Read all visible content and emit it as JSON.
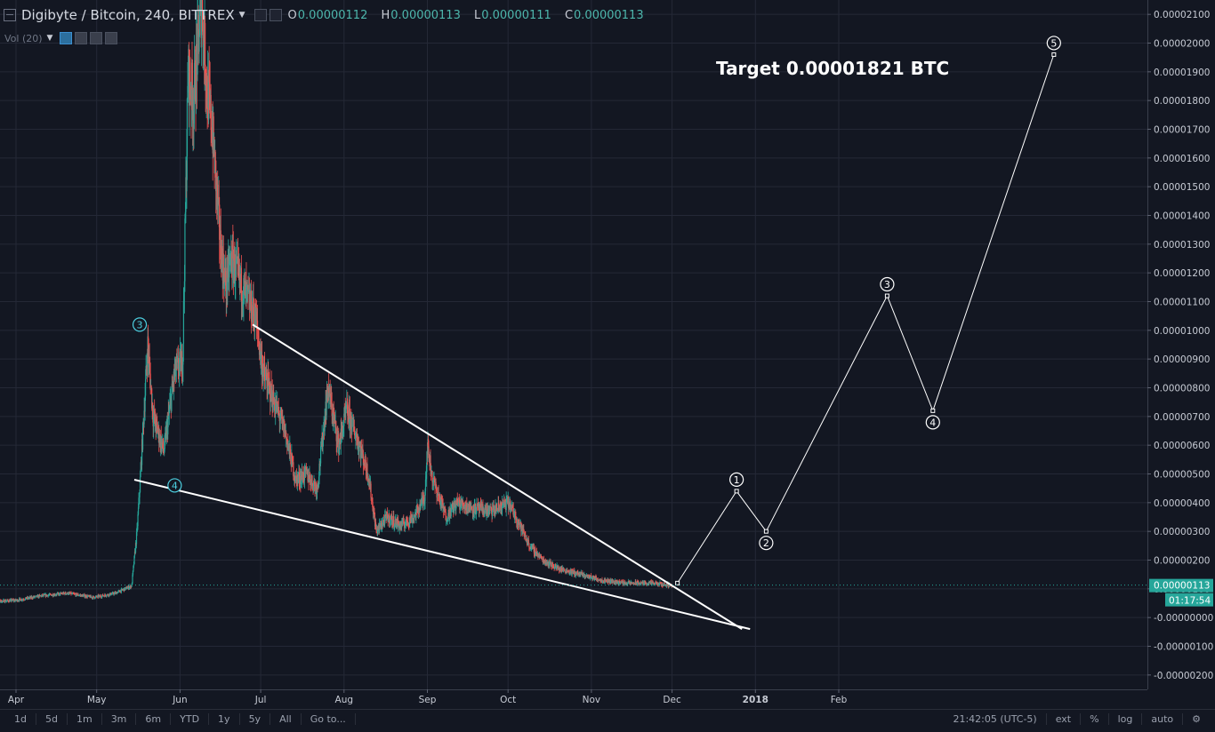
{
  "header": {
    "title": "Digibyte / Bitcoin, 240, BITTREX",
    "ohlc": [
      {
        "key": "O",
        "value": "0.00000112"
      },
      {
        "key": "H",
        "value": "0.00000113"
      },
      {
        "key": "L",
        "value": "0.00000111"
      },
      {
        "key": "C",
        "value": "0.00000113"
      }
    ],
    "volume_label": "Vol (20)"
  },
  "colors": {
    "background": "#131722",
    "grid": "#242836",
    "up": "#26a69a",
    "down": "#ef5350",
    "price_tag": "#26a69a",
    "drawing": "#ffffff",
    "wave_marker_early": "#4dd0e1"
  },
  "chart_data": {
    "type": "candlestick",
    "annotation": "Target 0.00001821 BTC",
    "x_tick_labels": [
      "Apr",
      "May",
      "Jun",
      "Jul",
      "Aug",
      "Sep",
      "Oct",
      "Nov",
      "Dec",
      "2018",
      "Feb"
    ],
    "x_tick_dates": [
      "2017-04-01",
      "2017-05-01",
      "2017-06-01",
      "2017-07-01",
      "2017-08-01",
      "2017-09-01",
      "2017-10-01",
      "2017-11-01",
      "2017-12-01",
      "2018-01-01",
      "2018-02-01"
    ],
    "y_range": [
      -2.5e-06,
      2.15e-05
    ],
    "y_tick_labels": [
      "0.00002100",
      "0.00002000",
      "0.00001900",
      "0.00001800",
      "0.00001700",
      "0.00001600",
      "0.00001500",
      "0.00001400",
      "0.00001300",
      "0.00001200",
      "0.00001100",
      "0.00001000",
      "0.00000900",
      "0.00000800",
      "0.00000700",
      "0.00000600",
      "0.00000500",
      "0.00000400",
      "0.00000300",
      "0.00000200",
      "0.00000100",
      "-0.00000000",
      "-0.00000100",
      "-0.00000200"
    ],
    "y_tick_values": [
      2.1e-05,
      2e-05,
      1.9e-05,
      1.8e-05,
      1.7e-05,
      1.6e-05,
      1.5e-05,
      1.4e-05,
      1.3e-05,
      1.2e-05,
      1.1e-05,
      1e-05,
      9e-06,
      8e-06,
      7e-06,
      6e-06,
      5e-06,
      4e-06,
      3e-06,
      2e-06,
      1e-06,
      0,
      -1e-06,
      -2e-06
    ],
    "price_path": [
      [
        "2017-03-22",
        5.5e-07
      ],
      [
        "2017-04-01",
        6e-07
      ],
      [
        "2017-04-10",
        7.5e-07
      ],
      [
        "2017-04-20",
        8.5e-07
      ],
      [
        "2017-04-30",
        7e-07
      ],
      [
        "2017-05-08",
        8.5e-07
      ],
      [
        "2017-05-14",
        1.1e-06
      ],
      [
        "2017-05-16",
        3e-06
      ],
      [
        "2017-05-17",
        4.5e-06
      ],
      [
        "2017-05-20",
        9.5e-06
      ],
      [
        "2017-05-22",
        7e-06
      ],
      [
        "2017-05-26",
        5.8e-06
      ],
      [
        "2017-05-30",
        8.5e-06
      ],
      [
        "2017-06-02",
        9e-06
      ],
      [
        "2017-06-04",
        1.9e-05
      ],
      [
        "2017-06-06",
        1.8e-05
      ],
      [
        "2017-06-09",
        2.15e-05
      ],
      [
        "2017-06-11",
        1.85e-05
      ],
      [
        "2017-06-13",
        1.7e-05
      ],
      [
        "2017-06-16",
        1.3e-05
      ],
      [
        "2017-06-18",
        1.15e-05
      ],
      [
        "2017-06-20",
        1.25e-05
      ],
      [
        "2017-06-24",
        1.15e-05
      ],
      [
        "2017-06-29",
        1.05e-05
      ],
      [
        "2017-07-02",
        8.5e-06
      ],
      [
        "2017-07-06",
        7.5e-06
      ],
      [
        "2017-07-10",
        6.5e-06
      ],
      [
        "2017-07-14",
        4.8e-06
      ],
      [
        "2017-07-18",
        5e-06
      ],
      [
        "2017-07-22",
        4.5e-06
      ],
      [
        "2017-07-26",
        8e-06
      ],
      [
        "2017-07-30",
        6e-06
      ],
      [
        "2017-08-02",
        7.2e-06
      ],
      [
        "2017-08-06",
        6.2e-06
      ],
      [
        "2017-08-10",
        5e-06
      ],
      [
        "2017-08-13",
        3e-06
      ],
      [
        "2017-08-17",
        3.5e-06
      ],
      [
        "2017-08-22",
        3.2e-06
      ],
      [
        "2017-08-27",
        3.5e-06
      ],
      [
        "2017-08-31",
        4.2e-06
      ],
      [
        "2017-09-01",
        6e-06
      ],
      [
        "2017-09-03",
        4.8e-06
      ],
      [
        "2017-09-08",
        3.5e-06
      ],
      [
        "2017-09-12",
        4e-06
      ],
      [
        "2017-09-18",
        3.8e-06
      ],
      [
        "2017-09-25",
        3.7e-06
      ],
      [
        "2017-10-01",
        4e-06
      ],
      [
        "2017-10-04",
        3.5e-06
      ],
      [
        "2017-10-09",
        2.5e-06
      ],
      [
        "2017-10-14",
        2e-06
      ],
      [
        "2017-10-20",
        1.7e-06
      ],
      [
        "2017-10-28",
        1.5e-06
      ],
      [
        "2017-11-05",
        1.3e-06
      ],
      [
        "2017-11-14",
        1.2e-06
      ],
      [
        "2017-11-22",
        1.2e-06
      ],
      [
        "2017-12-01",
        1.13e-06
      ]
    ],
    "last_price": "0.00000113",
    "countdown": "01:17:54",
    "trendlines": [
      {
        "from": [
          "2017-06-28",
          1.02e-05
        ],
        "to": [
          "2017-12-27",
          -4e-07
        ]
      },
      {
        "from": [
          "2017-05-15",
          4.8e-06
        ],
        "to": [
          "2017-12-30",
          -4e-07
        ]
      }
    ],
    "wave_labels_past": [
      {
        "label": "3",
        "date": "2017-05-17",
        "value": 1.02e-05
      },
      {
        "label": "4",
        "date": "2017-05-30",
        "value": 4.6e-06
      }
    ],
    "projection": [
      {
        "label": "",
        "date": "2017-12-03",
        "value": 1.2e-06
      },
      {
        "label": "1",
        "date": "2017-12-25",
        "value": 4.4e-06
      },
      {
        "label": "2",
        "date": "2018-01-05",
        "value": 3e-06
      },
      {
        "label": "3",
        "date": "2018-02-19",
        "value": 1.12e-05
      },
      {
        "label": "4",
        "date": "2018-03-08",
        "value": 7.2e-06
      },
      {
        "label": "5",
        "date": "2018-04-22",
        "value": 1.96e-05
      }
    ]
  },
  "bottom_toolbar": {
    "ranges": [
      "1d",
      "5d",
      "1m",
      "3m",
      "6m",
      "YTD",
      "1y",
      "5y",
      "All",
      "Go to..."
    ],
    "clock": "21:42:05 (UTC-5)",
    "options": [
      "ext",
      "%",
      "log",
      "auto"
    ]
  }
}
